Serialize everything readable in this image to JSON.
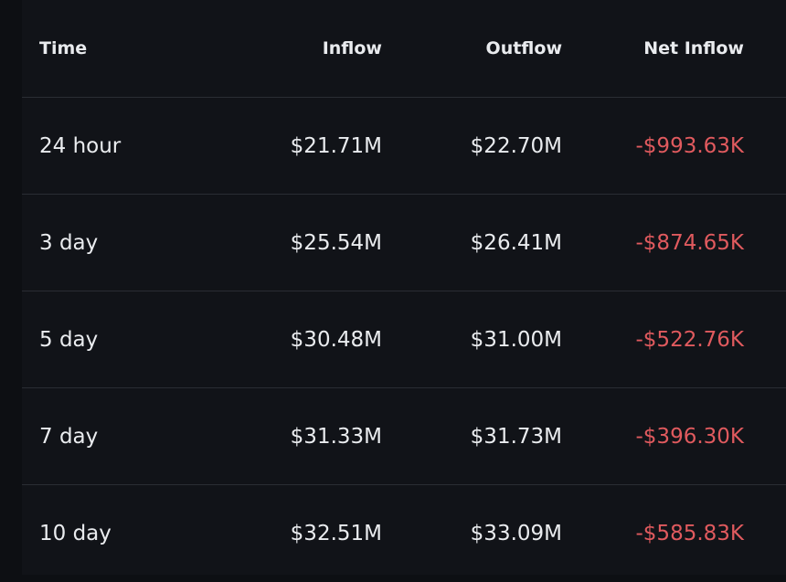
{
  "table": {
    "headers": {
      "time": "Time",
      "inflow": "Inflow",
      "outflow": "Outflow",
      "net_inflow": "Net Inflow"
    },
    "rows": [
      {
        "time": "24 hour",
        "inflow": "$21.71M",
        "outflow": "$22.70M",
        "net_inflow": "-$993.63K"
      },
      {
        "time": "3 day",
        "inflow": "$25.54M",
        "outflow": "$26.41M",
        "net_inflow": "-$874.65K"
      },
      {
        "time": "5 day",
        "inflow": "$30.48M",
        "outflow": "$31.00M",
        "net_inflow": "-$522.76K"
      },
      {
        "time": "7 day",
        "inflow": "$31.33M",
        "outflow": "$31.73M",
        "net_inflow": "-$396.30K"
      },
      {
        "time": "10 day",
        "inflow": "$32.51M",
        "outflow": "$33.09M",
        "net_inflow": "-$585.83K"
      }
    ],
    "colors": {
      "negative": "#e05a5e",
      "text": "#eaecef",
      "background": "#111318",
      "divider": "#2a2d33"
    }
  }
}
